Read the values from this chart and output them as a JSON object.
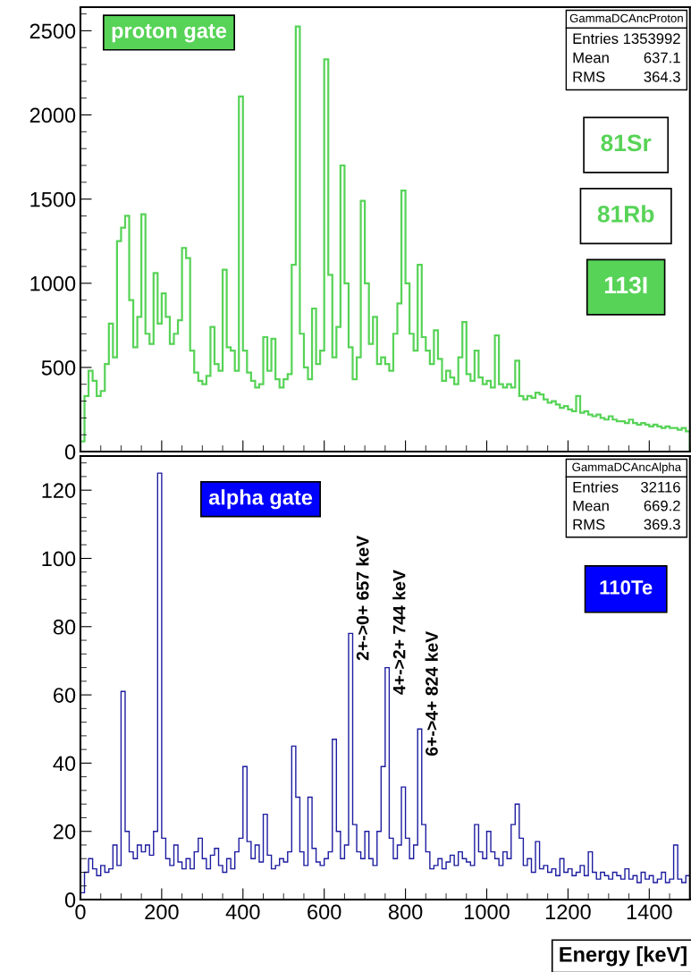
{
  "chart_data": [
    {
      "type": "histogram",
      "title": "proton gate",
      "color": "#57d357",
      "bins": [
        0,
        10,
        20,
        30,
        40,
        50,
        60,
        70,
        80,
        90,
        100,
        110,
        120,
        130,
        140,
        150,
        160,
        170,
        180,
        190,
        200,
        210,
        220,
        230,
        240,
        250,
        260,
        270,
        280,
        290,
        300,
        310,
        320,
        330,
        340,
        350,
        360,
        370,
        380,
        390,
        400,
        410,
        420,
        430,
        440,
        450,
        460,
        470,
        480,
        490,
        500,
        510,
        520,
        530,
        540,
        550,
        560,
        570,
        580,
        590,
        600,
        610,
        620,
        630,
        640,
        650,
        660,
        670,
        680,
        690,
        700,
        710,
        720,
        730,
        740,
        750,
        760,
        770,
        780,
        790,
        800,
        810,
        820,
        830,
        840,
        850,
        860,
        870,
        880,
        890,
        900,
        910,
        920,
        930,
        940,
        950,
        960,
        970,
        980,
        990,
        1000,
        1010,
        1020,
        1030,
        1040,
        1050,
        1060,
        1070,
        1080,
        1090,
        1100,
        1110,
        1120,
        1130,
        1140,
        1150,
        1160,
        1170,
        1180,
        1190,
        1200,
        1210,
        1220,
        1230,
        1240,
        1250,
        1260,
        1270,
        1280,
        1290,
        1300,
        1310,
        1320,
        1330,
        1340,
        1350,
        1360,
        1370,
        1380,
        1390,
        1400,
        1410,
        1420,
        1430,
        1440,
        1450,
        1460,
        1470,
        1480,
        1490,
        1500
      ],
      "values": [
        60,
        330,
        480,
        420,
        330,
        360,
        520,
        760,
        560,
        1250,
        1330,
        1400,
        900,
        620,
        800,
        1410,
        700,
        640,
        1060,
        760,
        940,
        800,
        640,
        700,
        780,
        1210,
        1150,
        600,
        470,
        420,
        400,
        450,
        740,
        520,
        480,
        1080,
        620,
        600,
        480,
        2110,
        600,
        470,
        420,
        380,
        400,
        680,
        480,
        670,
        430,
        380,
        430,
        460,
        1110,
        2525,
        700,
        500,
        430,
        850,
        520,
        600,
        2330,
        1050,
        560,
        740,
        1700,
        1000,
        620,
        430,
        560,
        1490,
        1000,
        640,
        800,
        520,
        560,
        520,
        480,
        700,
        880,
        1550,
        1000,
        700,
        600,
        1110,
        680,
        600,
        520,
        720,
        550,
        420,
        480,
        440,
        400,
        560,
        770,
        460,
        420,
        600,
        440,
        400,
        420,
        380,
        690,
        400,
        380,
        400,
        380,
        540,
        330,
        310,
        330,
        320,
        350,
        340,
        310,
        290,
        300,
        280,
        260,
        270,
        250,
        240,
        330,
        230,
        240,
        220,
        210,
        220,
        200,
        190,
        210,
        190,
        180,
        180,
        170,
        190,
        170,
        160,
        170,
        160,
        150,
        160,
        150,
        140,
        150,
        140,
        140,
        130,
        140,
        120
      ],
      "xlim": [
        0,
        1500
      ],
      "ylim": [
        0,
        2640
      ],
      "xticks": [
        0,
        200,
        400,
        600,
        800,
        1000,
        1200,
        1400
      ],
      "yticks": [
        0,
        500,
        1000,
        1500,
        2000,
        2500
      ],
      "tick_labels": "y",
      "grid": false,
      "annotations": [
        "GammaDCAncProton",
        "Entries 1353992",
        "Mean 637.1",
        "RMS 364.3",
        "81Sr",
        "81Rb",
        "113I"
      ]
    },
    {
      "type": "histogram",
      "title": "alpha gate",
      "color": "#1c1ca0",
      "xlabel": "Energy [keV]",
      "bins": [
        0,
        10,
        20,
        30,
        40,
        50,
        60,
        70,
        80,
        90,
        100,
        110,
        120,
        130,
        140,
        150,
        160,
        170,
        180,
        190,
        200,
        210,
        220,
        230,
        240,
        250,
        260,
        270,
        280,
        290,
        300,
        310,
        320,
        330,
        340,
        350,
        360,
        370,
        380,
        390,
        400,
        410,
        420,
        430,
        440,
        450,
        460,
        470,
        480,
        490,
        500,
        510,
        520,
        530,
        540,
        550,
        560,
        570,
        580,
        590,
        600,
        610,
        620,
        630,
        640,
        650,
        660,
        670,
        680,
        690,
        700,
        710,
        720,
        730,
        740,
        750,
        760,
        770,
        780,
        790,
        800,
        810,
        820,
        830,
        840,
        850,
        860,
        870,
        880,
        890,
        900,
        910,
        920,
        930,
        940,
        950,
        960,
        970,
        980,
        990,
        1000,
        1010,
        1020,
        1030,
        1040,
        1050,
        1060,
        1070,
        1080,
        1090,
        1100,
        1110,
        1120,
        1130,
        1140,
        1150,
        1160,
        1170,
        1180,
        1190,
        1200,
        1210,
        1220,
        1230,
        1240,
        1250,
        1260,
        1270,
        1280,
        1290,
        1300,
        1310,
        1320,
        1330,
        1340,
        1350,
        1360,
        1370,
        1380,
        1390,
        1400,
        1410,
        1420,
        1430,
        1440,
        1450,
        1460,
        1470,
        1480,
        1490,
        1500
      ],
      "values": [
        2,
        8,
        12,
        9,
        7,
        10,
        8,
        9,
        16,
        10,
        61,
        20,
        14,
        12,
        16,
        14,
        16,
        13,
        20,
        125,
        18,
        12,
        10,
        16,
        11,
        9,
        12,
        9,
        14,
        18,
        12,
        9,
        13,
        15,
        10,
        8,
        12,
        9,
        14,
        18,
        39,
        17,
        12,
        16,
        11,
        25,
        13,
        9,
        10,
        12,
        11,
        14,
        45,
        30,
        14,
        10,
        30,
        15,
        11,
        10,
        12,
        14,
        47,
        20,
        12,
        16,
        78,
        22,
        14,
        12,
        20,
        12,
        10,
        20,
        39,
        68,
        18,
        12,
        16,
        33,
        18,
        12,
        16,
        50,
        22,
        14,
        9,
        10,
        12,
        9,
        11,
        13,
        10,
        14,
        12,
        11,
        10,
        22,
        14,
        12,
        20,
        14,
        12,
        10,
        14,
        12,
        22,
        28,
        18,
        10,
        12,
        8,
        17,
        9,
        10,
        8,
        9,
        7,
        12,
        8,
        9,
        7,
        8,
        10,
        7,
        14,
        8,
        6,
        8,
        7,
        6,
        8,
        7,
        6,
        9,
        6,
        7,
        5,
        8,
        6,
        7,
        5,
        6,
        8,
        5,
        6,
        16,
        6,
        5,
        7
      ],
      "xlim": [
        0,
        1500
      ],
      "ylim": [
        0,
        130
      ],
      "xticks": [
        0,
        200,
        400,
        600,
        800,
        1000,
        1200,
        1400
      ],
      "yticks": [
        0,
        20,
        40,
        60,
        80,
        100,
        120
      ],
      "grid": false,
      "annotations": [
        "GammaDCAncAlpha",
        "Entries 32116",
        "Mean 669.2",
        "RMS 369.3",
        "110Te",
        {
          "text": "2+->0+ 657 keV",
          "x": 660,
          "y": 78
        },
        {
          "text": "4+->2+ 744 keV",
          "x": 750,
          "y": 68
        },
        {
          "text": "6+->4+ 824 keV",
          "x": 830,
          "y": 50
        }
      ]
    }
  ]
}
